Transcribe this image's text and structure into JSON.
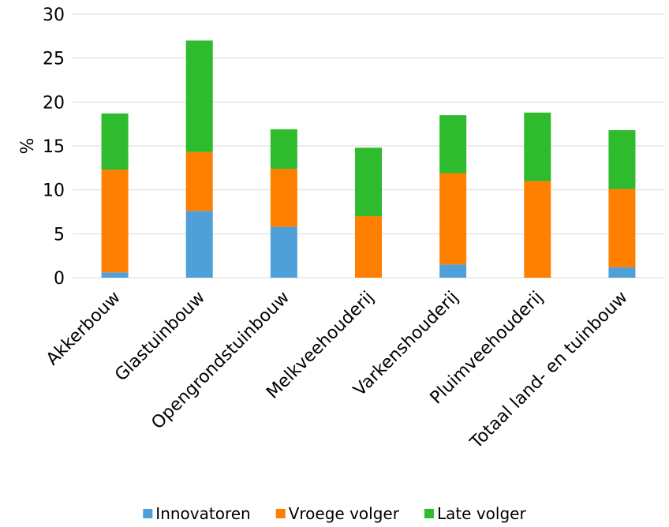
{
  "chart_data": {
    "type": "bar",
    "stacked": true,
    "title": "",
    "xlabel": "",
    "ylabel": "%",
    "ylim": [
      0,
      30
    ],
    "yticks": [
      "0",
      "5",
      "10",
      "15",
      "20",
      "25",
      "30"
    ],
    "grid": true,
    "legend_position": "bottom",
    "categories": [
      "Akkerbouw",
      "Glastuinbouw",
      "Opengrondstuinbouw",
      "Melkveehouderij",
      "Varkenshouderij",
      "Pluimveehouderij",
      "Totaal land- en tuinbouw"
    ],
    "series": [
      {
        "name": "Innovatoren",
        "color": "#4fa0d8",
        "values": [
          0.6,
          7.6,
          5.8,
          0,
          1.5,
          0,
          1.2
        ]
      },
      {
        "name": "Vroege volger",
        "color": "#ff7f00",
        "values": [
          11.7,
          6.7,
          6.6,
          7.0,
          10.4,
          11.0,
          8.9
        ]
      },
      {
        "name": "Late volger",
        "color": "#2ebb2e",
        "values": [
          6.4,
          12.7,
          4.5,
          7.8,
          6.6,
          7.8,
          6.7
        ]
      }
    ]
  }
}
